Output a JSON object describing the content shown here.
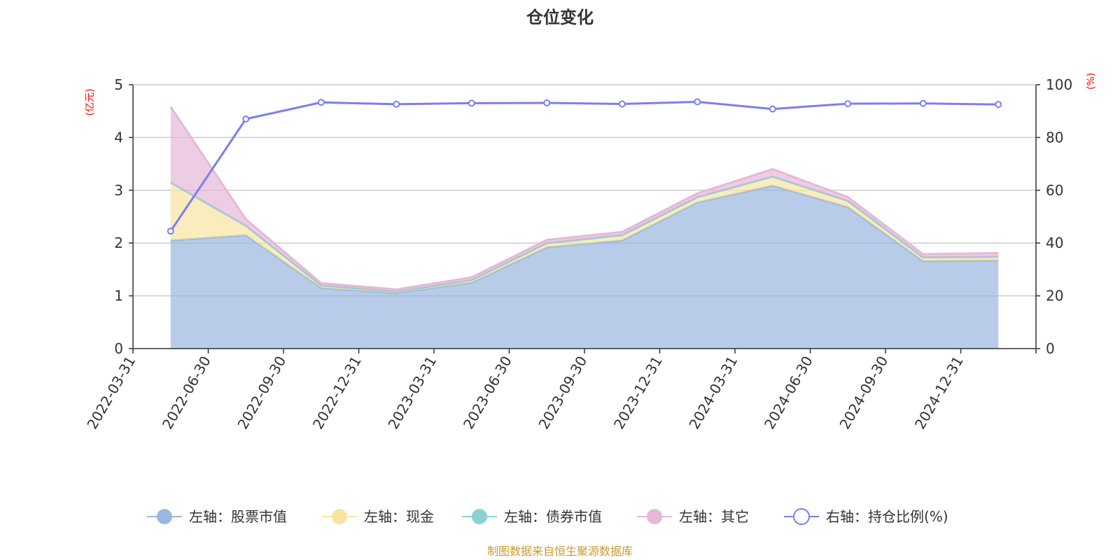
{
  "chart_data": {
    "type": "area",
    "title": "仓位变化",
    "left_axis": {
      "unit": "(亿元)",
      "ylim": [
        0,
        5
      ],
      "ticks": [
        "0",
        "1",
        "2",
        "3",
        "4",
        "5"
      ]
    },
    "right_axis": {
      "unit": "(%)",
      "ylim": [
        0,
        100
      ],
      "ticks": [
        "0",
        "20",
        "40",
        "60",
        "80",
        "100"
      ]
    },
    "categories": [
      "2022-03-31",
      "2022-06-30",
      "2022-09-30",
      "2022-12-31",
      "2023-03-31",
      "2023-06-30",
      "2023-09-30",
      "2023-12-31",
      "2024-03-31",
      "2024-06-30",
      "2024-09-30",
      "2024-12-31"
    ],
    "stacked": true,
    "grid": true,
    "legend_position": "bottom",
    "series": [
      {
        "name": "左轴：股票市值",
        "axis": "left",
        "type": "area",
        "color": "#9ab7e0",
        "values": [
          2.05,
          2.15,
          1.15,
          1.05,
          1.25,
          1.92,
          2.05,
          2.77,
          3.09,
          2.68,
          1.66,
          1.67
        ]
      },
      {
        "name": "左轴：现金",
        "axis": "left",
        "type": "area",
        "color": "#f8e4a0",
        "values": [
          1.1,
          0.18,
          0.05,
          0.03,
          0.05,
          0.08,
          0.1,
          0.1,
          0.17,
          0.12,
          0.07,
          0.07
        ]
      },
      {
        "name": "左轴：债券市值",
        "axis": "left",
        "type": "area",
        "color": "#8ecfd0",
        "values": [
          0,
          0,
          0,
          0,
          0,
          0,
          0,
          0,
          0,
          0,
          0,
          0
        ]
      },
      {
        "name": "左轴：其它",
        "axis": "left",
        "type": "area",
        "color": "#e6b8d8",
        "values": [
          1.43,
          0.12,
          0.04,
          0.04,
          0.05,
          0.06,
          0.06,
          0.07,
          0.14,
          0.07,
          0.06,
          0.07
        ]
      },
      {
        "name": "右轴：持仓比例(%)",
        "axis": "right",
        "type": "line",
        "color": "#7b7fef",
        "values": [
          44.5,
          87.0,
          93.3,
          92.6,
          93.0,
          93.1,
          92.7,
          93.5,
          90.8,
          92.8,
          92.9,
          92.5
        ]
      }
    ],
    "source": "制图数据来自恒生聚源数据库"
  }
}
